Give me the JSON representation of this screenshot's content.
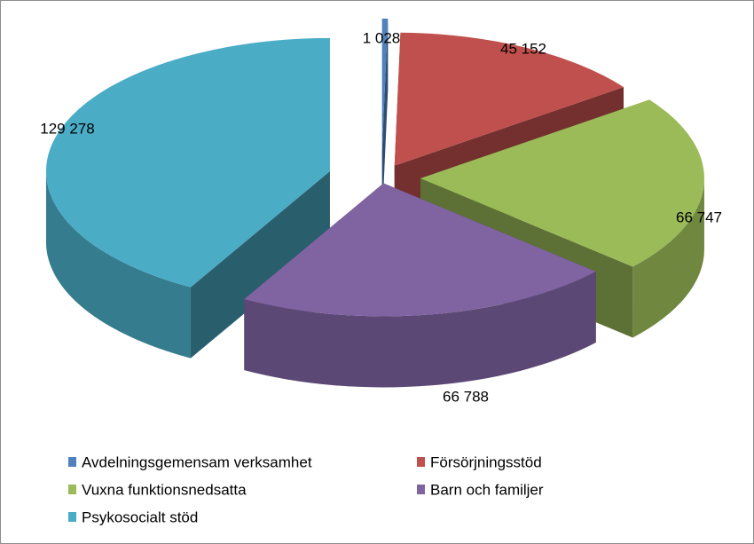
{
  "chart_data": {
    "type": "pie",
    "style": "3d-exploded",
    "legend_position": "bottom",
    "categories": [
      "Avdelningsgemensam verksamhet",
      "Försörjningsstöd",
      "Vuxna funktionsnedsatta",
      "Barn och familjer",
      "Psykosocialt stöd"
    ],
    "values": [
      1028,
      45152,
      66747,
      66788,
      129278
    ],
    "value_labels": [
      "1 028",
      "45 152",
      "66 747",
      "66 788",
      "129 278"
    ],
    "colors": [
      "#4f81bd",
      "#c0504d",
      "#9bbb59",
      "#8064a2",
      "#4bacc6"
    ]
  }
}
